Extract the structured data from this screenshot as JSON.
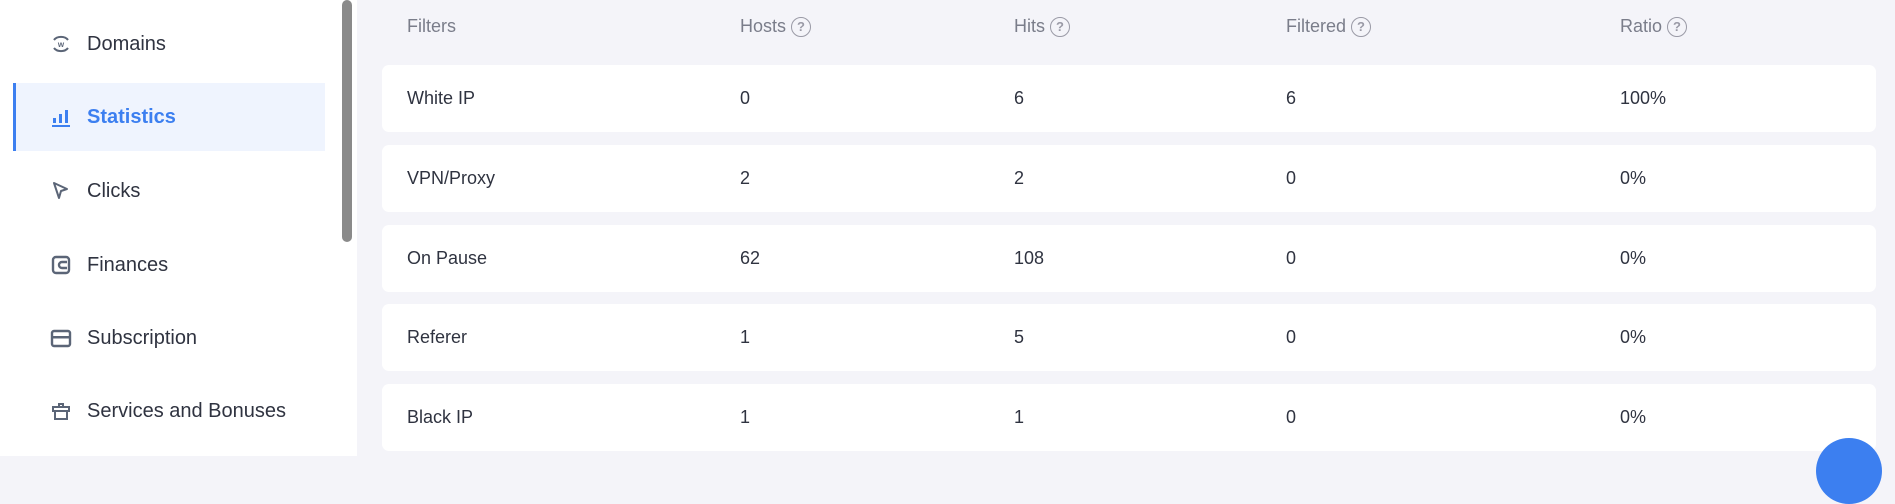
{
  "sidebar": {
    "items": [
      {
        "label": "Domains",
        "icon": "domain-w-icon",
        "active": false
      },
      {
        "label": "Statistics",
        "icon": "bar-chart-icon",
        "active": true
      },
      {
        "label": "Clicks",
        "icon": "cursor-icon",
        "active": false
      },
      {
        "label": "Finances",
        "icon": "wallet-icon",
        "active": false
      },
      {
        "label": "Subscription",
        "icon": "card-icon",
        "active": false
      },
      {
        "label": "Services and Bonuses",
        "icon": "gift-icon",
        "active": false
      }
    ]
  },
  "table": {
    "headers": [
      "Filters",
      "Hosts",
      "Hits",
      "Filtered",
      "Ratio"
    ],
    "help_icon": "?",
    "rows": [
      [
        "White IP",
        "0",
        "6",
        "6",
        "100%"
      ],
      [
        "VPN/Proxy",
        "2",
        "2",
        "0",
        "0%"
      ],
      [
        "On Pause",
        "62",
        "108",
        "0",
        "0%"
      ],
      [
        "Referer",
        "1",
        "5",
        "0",
        "0%"
      ],
      [
        "Black IP",
        "1",
        "1",
        "0",
        "0%"
      ]
    ]
  },
  "colors": {
    "accent": "#3c7ff0",
    "background": "#f4f4f9"
  }
}
